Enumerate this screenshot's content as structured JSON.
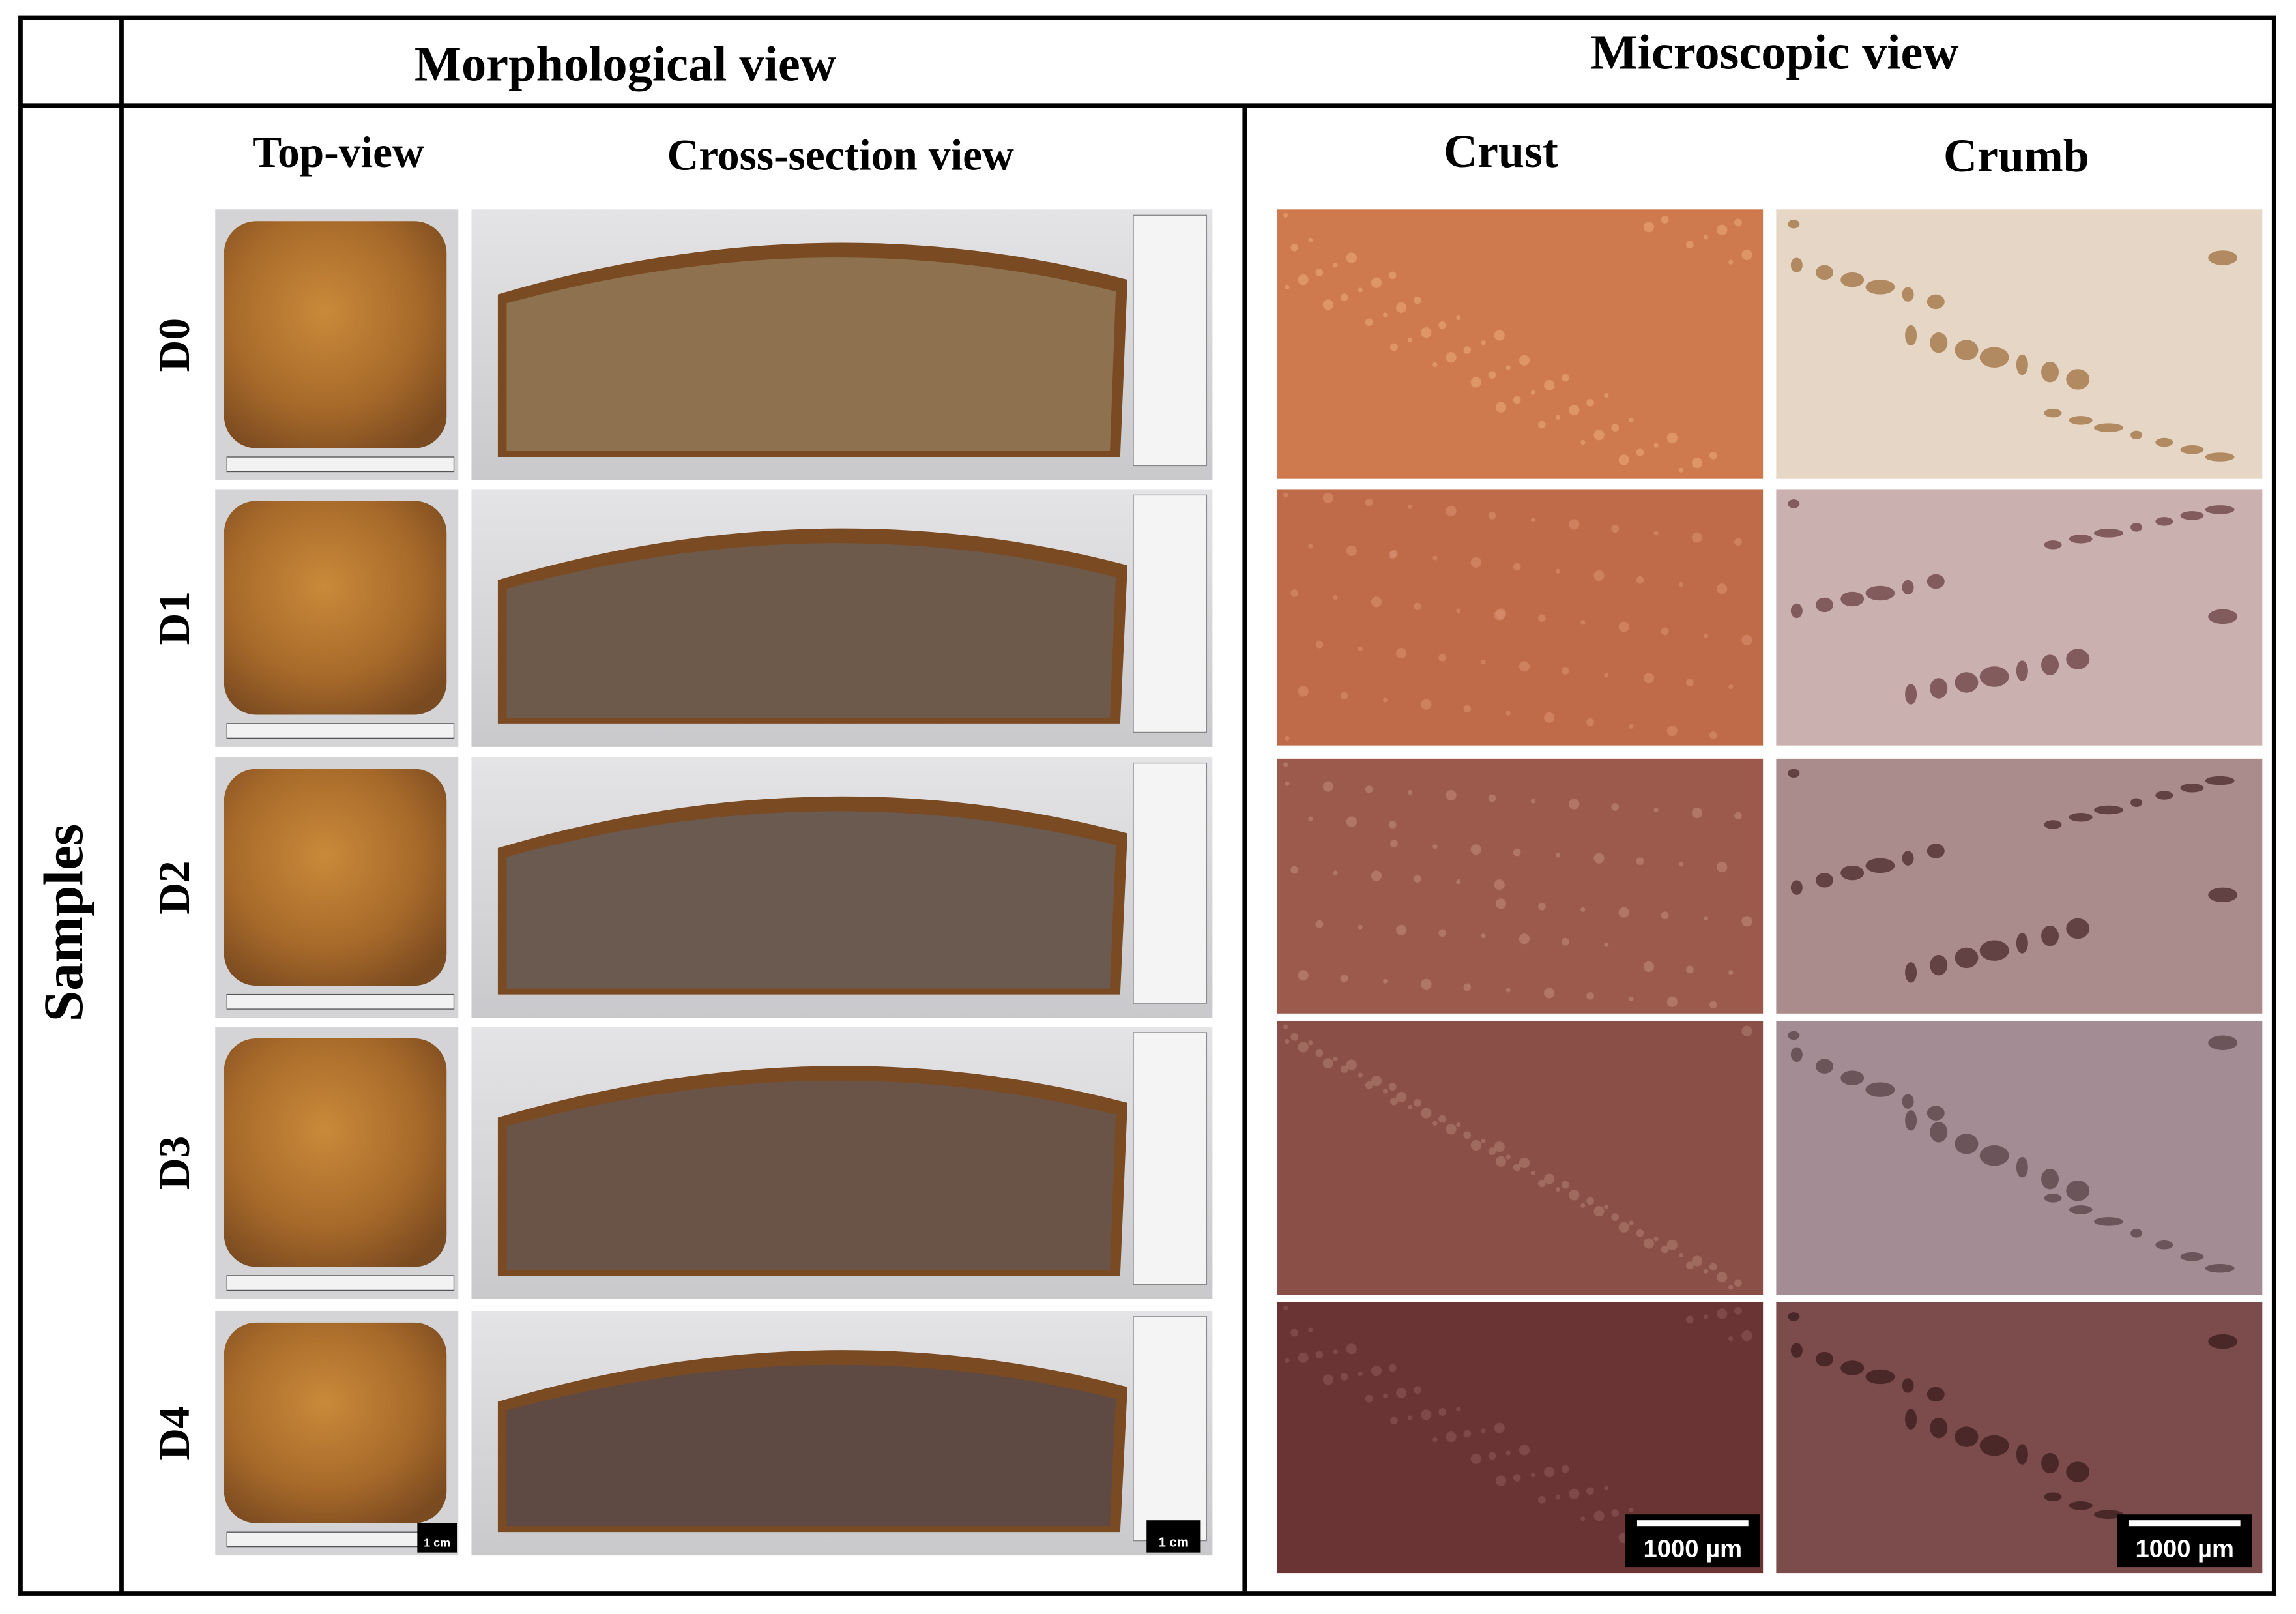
{
  "header": {
    "morphological": "Morphological view",
    "microscopic": "Microscopic view"
  },
  "row_header": "Samples",
  "columns": [
    "Top-view",
    "Cross-section view",
    "Crust",
    "Crumb"
  ],
  "samples": [
    "D0",
    "D1",
    "D2",
    "D3",
    "D4"
  ],
  "scale_bars": {
    "top_view": "1 cm",
    "cross_section": "1 cm",
    "crust": "1000 µm",
    "crumb": "1000 µm"
  }
}
